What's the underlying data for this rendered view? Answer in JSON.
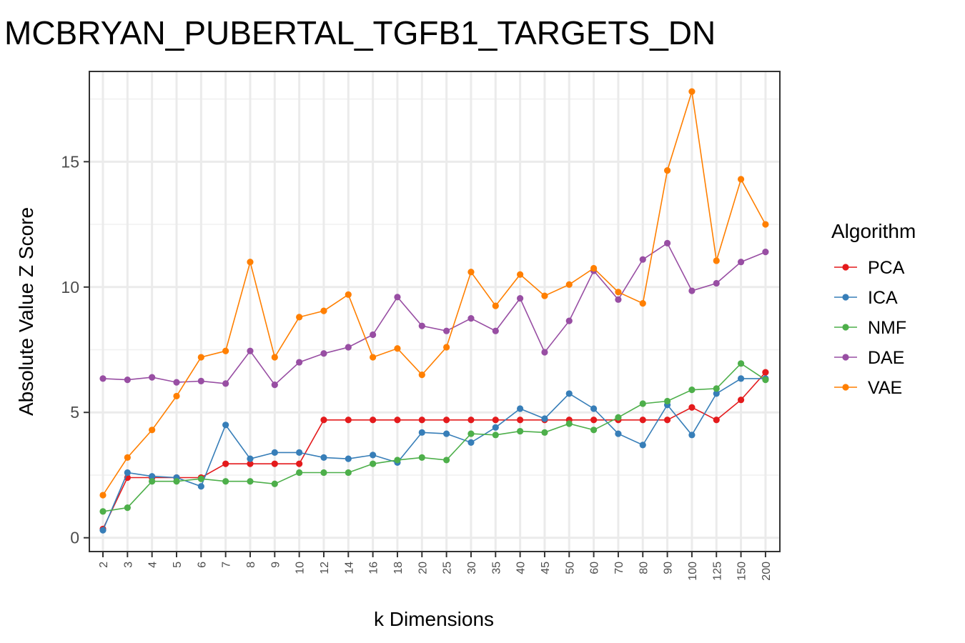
{
  "chart_data": {
    "type": "line",
    "title": "MCBRYAN_PUBERTAL_TGFB1_TARGETS_DN",
    "xlabel": "k Dimensions",
    "ylabel": "Absolute Value Z Score",
    "x_scale": "categorical",
    "categories": [
      "2",
      "3",
      "4",
      "5",
      "6",
      "7",
      "8",
      "9",
      "10",
      "12",
      "14",
      "16",
      "18",
      "20",
      "25",
      "30",
      "35",
      "40",
      "45",
      "50",
      "60",
      "70",
      "80",
      "90",
      "100",
      "125",
      "150",
      "200"
    ],
    "ylim": [
      -0.55,
      18.6
    ],
    "yticks": [
      "0",
      "5",
      "10",
      "15"
    ],
    "grid": true,
    "legend_title": "Algorithm",
    "legend_position": "right",
    "series": [
      {
        "name": "PCA",
        "color": "#e41a1c",
        "values": [
          0.35,
          2.4,
          2.4,
          2.4,
          2.4,
          2.95,
          2.95,
          2.95,
          2.95,
          4.7,
          4.7,
          4.7,
          4.7,
          4.7,
          4.7,
          4.7,
          4.7,
          4.7,
          4.7,
          4.7,
          4.7,
          4.7,
          4.7,
          4.7,
          5.2,
          4.7,
          5.5,
          6.6
        ]
      },
      {
        "name": "ICA",
        "color": "#377eb8",
        "values": [
          0.3,
          2.6,
          2.45,
          2.4,
          2.05,
          4.5,
          3.15,
          3.4,
          3.4,
          3.2,
          3.15,
          3.3,
          3.0,
          4.2,
          4.15,
          3.8,
          4.4,
          5.15,
          4.75,
          5.75,
          5.15,
          4.15,
          3.7,
          5.3,
          4.1,
          5.75,
          6.35,
          6.35
        ]
      },
      {
        "name": "NMF",
        "color": "#4daf4a",
        "values": [
          1.05,
          1.2,
          2.25,
          2.25,
          2.35,
          2.25,
          2.25,
          2.15,
          2.6,
          2.6,
          2.6,
          2.95,
          3.1,
          3.2,
          3.1,
          4.15,
          4.1,
          4.25,
          4.2,
          4.55,
          4.3,
          4.8,
          5.35,
          5.45,
          5.9,
          5.95,
          6.95,
          6.3
        ]
      },
      {
        "name": "DAE",
        "color": "#984ea3",
        "values": [
          6.35,
          6.3,
          6.4,
          6.2,
          6.25,
          6.15,
          7.45,
          6.1,
          7.0,
          7.35,
          7.6,
          8.1,
          9.6,
          8.45,
          8.25,
          8.75,
          8.25,
          9.55,
          7.4,
          8.65,
          10.65,
          9.5,
          11.1,
          11.75,
          9.85,
          10.15,
          11.0,
          11.4
        ]
      },
      {
        "name": "VAE",
        "color": "#ff7f00",
        "values": [
          1.7,
          3.2,
          4.3,
          5.65,
          7.2,
          7.45,
          11.0,
          7.2,
          8.8,
          9.05,
          9.7,
          7.2,
          7.55,
          6.5,
          7.6,
          10.6,
          9.25,
          10.5,
          9.65,
          10.1,
          10.75,
          9.8,
          9.35,
          14.65,
          17.8,
          11.05,
          14.3,
          12.5
        ]
      }
    ]
  }
}
